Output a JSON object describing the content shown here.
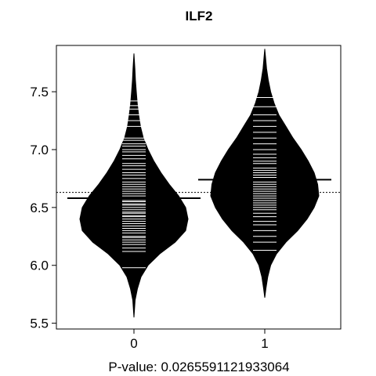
{
  "chart_data": {
    "type": "beanplot",
    "title": "ILF2",
    "xlabel": "P-value: 0.0265591121933064",
    "ylabel": "",
    "ylim": [
      5.45,
      7.9
    ],
    "yticks": [
      5.5,
      6.0,
      6.5,
      7.0,
      7.5
    ],
    "yticklabels": [
      "5.5",
      "6.0",
      "6.5",
      "7.0",
      "7.5"
    ],
    "overall_mean": 6.63,
    "categories": [
      "0",
      "1"
    ],
    "groups": [
      {
        "label": "0",
        "mean": 6.58,
        "range": [
          5.55,
          7.83
        ],
        "density": [
          [
            5.55,
            0.0
          ],
          [
            5.7,
            0.01
          ],
          [
            5.8,
            0.03
          ],
          [
            5.9,
            0.06
          ],
          [
            6.0,
            0.12
          ],
          [
            6.1,
            0.22
          ],
          [
            6.2,
            0.35
          ],
          [
            6.3,
            0.44
          ],
          [
            6.4,
            0.46
          ],
          [
            6.5,
            0.44
          ],
          [
            6.6,
            0.38
          ],
          [
            6.7,
            0.3
          ],
          [
            6.8,
            0.23
          ],
          [
            6.9,
            0.17
          ],
          [
            7.0,
            0.12
          ],
          [
            7.1,
            0.08
          ],
          [
            7.2,
            0.055
          ],
          [
            7.3,
            0.04
          ],
          [
            7.4,
            0.028
          ],
          [
            7.5,
            0.02
          ],
          [
            7.6,
            0.013
          ],
          [
            7.7,
            0.008
          ],
          [
            7.83,
            0.0
          ]
        ],
        "observations": [
          5.98,
          6.12,
          6.15,
          6.18,
          6.2,
          6.22,
          6.24,
          6.25,
          6.28,
          6.3,
          6.32,
          6.34,
          6.36,
          6.38,
          6.4,
          6.42,
          6.43,
          6.45,
          6.46,
          6.48,
          6.5,
          6.52,
          6.53,
          6.55,
          6.56,
          6.58,
          6.6,
          6.62,
          6.64,
          6.66,
          6.68,
          6.7,
          6.72,
          6.75,
          6.78,
          6.8,
          6.83,
          6.86,
          6.88,
          6.92,
          6.95,
          6.98,
          7.0,
          7.03,
          7.05,
          7.08,
          7.1,
          7.2,
          7.25,
          7.3,
          7.35,
          7.38,
          7.42
        ]
      },
      {
        "label": "1",
        "mean": 6.74,
        "range": [
          5.72,
          7.87
        ],
        "density": [
          [
            5.72,
            0.0
          ],
          [
            5.8,
            0.01
          ],
          [
            5.9,
            0.025
          ],
          [
            6.0,
            0.05
          ],
          [
            6.1,
            0.1
          ],
          [
            6.2,
            0.18
          ],
          [
            6.3,
            0.28
          ],
          [
            6.4,
            0.36
          ],
          [
            6.5,
            0.42
          ],
          [
            6.6,
            0.46
          ],
          [
            6.7,
            0.45
          ],
          [
            6.8,
            0.42
          ],
          [
            6.9,
            0.37
          ],
          [
            7.0,
            0.31
          ],
          [
            7.1,
            0.24
          ],
          [
            7.2,
            0.18
          ],
          [
            7.3,
            0.12
          ],
          [
            7.4,
            0.08
          ],
          [
            7.5,
            0.05
          ],
          [
            7.6,
            0.03
          ],
          [
            7.7,
            0.015
          ],
          [
            7.87,
            0.0
          ]
        ],
        "observations": [
          6.13,
          6.2,
          6.25,
          6.3,
          6.35,
          6.38,
          6.42,
          6.45,
          6.48,
          6.5,
          6.52,
          6.54,
          6.56,
          6.58,
          6.6,
          6.62,
          6.64,
          6.66,
          6.68,
          6.7,
          6.72,
          6.74,
          6.76,
          6.78,
          6.8,
          6.82,
          6.84,
          6.88,
          6.9,
          6.93,
          6.96,
          7.0,
          7.05,
          7.1,
          7.15,
          7.2,
          7.25,
          7.3,
          7.37,
          7.45
        ]
      }
    ],
    "colors": {
      "bean": "#000000",
      "observation_line": "#ffffff",
      "mean_line": "#000000",
      "frame": "#000000"
    }
  }
}
